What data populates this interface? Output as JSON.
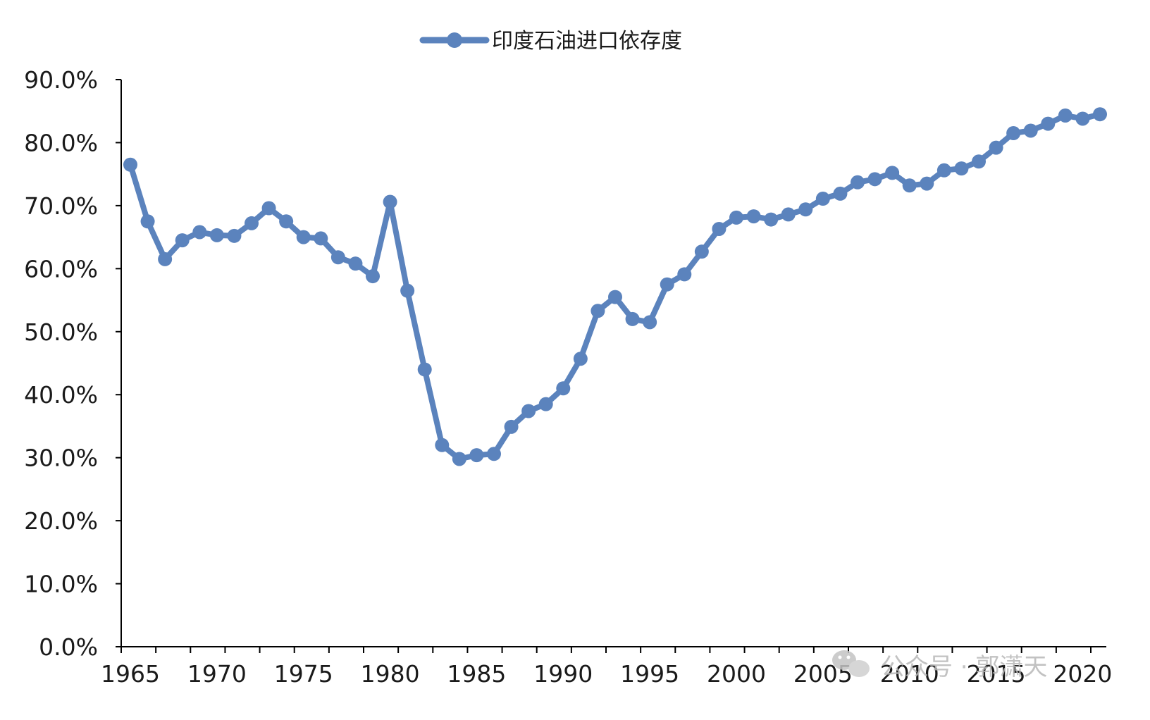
{
  "colors": {
    "series": "#5b83bd",
    "axis": "#000000",
    "text": "#1a1a1a",
    "watermark": "#b8b8b8"
  },
  "watermark": {
    "icon": "wechat-icon",
    "text": "公众号 · 郭潇天"
  },
  "chart_data": {
    "type": "line",
    "title": "",
    "xlabel": "",
    "ylabel": "",
    "legend": {
      "position": "top-center",
      "entries": [
        "印度石油进口依存度"
      ]
    },
    "grid": false,
    "markers": "circle",
    "ylim": [
      0,
      90
    ],
    "y_ticks": [
      "0.0%",
      "10.0%",
      "20.0%",
      "30.0%",
      "40.0%",
      "50.0%",
      "60.0%",
      "70.0%",
      "80.0%",
      "90.0%"
    ],
    "x_range": [
      1965,
      2021
    ],
    "x_tick_labels": [
      "1965",
      "1970",
      "1975",
      "1980",
      "1985",
      "1990",
      "1995",
      "2000",
      "2005",
      "2010",
      "2015",
      "2020"
    ],
    "series": [
      {
        "name": "印度石油进口依存度",
        "x": [
          1965,
          1966,
          1967,
          1968,
          1969,
          1970,
          1971,
          1972,
          1973,
          1974,
          1975,
          1976,
          1977,
          1978,
          1979,
          1980,
          1981,
          1982,
          1983,
          1984,
          1985,
          1986,
          1987,
          1988,
          1989,
          1990,
          1991,
          1992,
          1993,
          1994,
          1995,
          1996,
          1997,
          1998,
          1999,
          2000,
          2001,
          2002,
          2003,
          2004,
          2005,
          2006,
          2007,
          2008,
          2009,
          2010,
          2011,
          2012,
          2013,
          2014,
          2015,
          2016,
          2017,
          2018,
          2019,
          2020,
          2021
        ],
        "values": [
          76.5,
          67.5,
          61.5,
          64.5,
          65.8,
          65.3,
          65.2,
          67.2,
          69.6,
          67.5,
          65.0,
          64.8,
          61.8,
          60.8,
          58.8,
          70.6,
          56.5,
          44.0,
          32.0,
          29.8,
          30.4,
          30.6,
          34.9,
          37.4,
          38.5,
          41.0,
          45.7,
          53.3,
          55.5,
          52.0,
          51.5,
          57.5,
          59.1,
          62.7,
          66.3,
          68.1,
          68.3,
          67.8,
          68.6,
          69.4,
          71.1,
          71.9,
          73.7,
          74.2,
          75.2,
          73.2,
          73.5,
          75.6,
          75.9,
          77.0,
          79.2,
          81.5,
          81.9,
          83.0,
          84.3,
          83.8,
          84.5
        ]
      }
    ]
  }
}
